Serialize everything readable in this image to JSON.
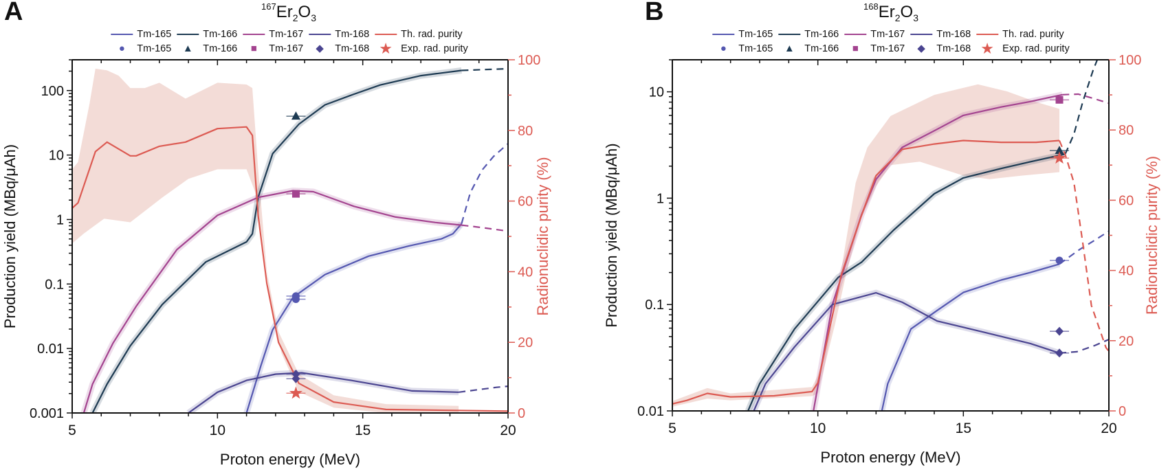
{
  "colors": {
    "tm165": "#5457b0",
    "tm166": "#1d3a52",
    "tm167": "#a3438f",
    "tm168": "#4a4490",
    "purity": "#dc5a52",
    "purity_band": "#f3dcd7"
  },
  "legend": {
    "lines": [
      "Tm-165",
      "Tm-166",
      "Tm-167",
      "Tm-168",
      "Th. rad. purity"
    ],
    "markers": [
      "Tm-165",
      "Tm-166",
      "Tm-167",
      "Tm-168",
      "Exp. rad. purity"
    ],
    "line_keys": [
      "tm165",
      "tm166",
      "tm167",
      "tm168",
      "purity"
    ],
    "marker_symbols": [
      "●",
      "▲",
      "■",
      "◆",
      "★"
    ]
  },
  "chart_data": [
    {
      "panel": "A",
      "type": "line",
      "title": {
        "mass": "167",
        "el1": "Er",
        "n1": "2",
        "el2": "O",
        "n2": "3"
      },
      "xlabel": "Proton energy (MeV)",
      "ylabel": "Production yield (MBq/μAh)",
      "y2label": "Radionuclidic purity (%)",
      "xlim": [
        5,
        20
      ],
      "ylim": [
        0.001,
        300
      ],
      "yscale": "log",
      "y2lim": [
        0,
        100
      ],
      "xticks": [
        "5",
        "10",
        "15",
        "20"
      ],
      "yticks": [
        "0.001",
        "0.01",
        "0.1",
        "1",
        "10",
        "100"
      ],
      "y2ticks": [
        "0",
        "20",
        "40",
        "60",
        "80",
        "100"
      ],
      "series": [
        {
          "name": "Tm-165",
          "key": "tm165",
          "marker": "circle",
          "solid": [
            [
              11.0,
              0.001
            ],
            [
              11.5,
              0.0055
            ],
            [
              11.9,
              0.0195
            ],
            [
              12.6,
              0.062
            ],
            [
              13.7,
              0.14
            ],
            [
              15.2,
              0.27
            ],
            [
              16.6,
              0.39
            ],
            [
              17.7,
              0.5
            ],
            [
              18.1,
              0.6
            ],
            [
              18.4,
              0.86
            ]
          ],
          "dashed": [
            [
              18.4,
              0.86
            ],
            [
              18.7,
              2.6
            ],
            [
              19.1,
              5.8
            ],
            [
              19.5,
              9.5
            ],
            [
              20,
              15
            ]
          ],
          "points": [
            [
              12.7,
              0.065
            ],
            [
              12.7,
              0.058
            ]
          ]
        },
        {
          "name": "Tm-166",
          "key": "tm166",
          "marker": "triangle",
          "solid": [
            [
              5.7,
              0.001
            ],
            [
              6.2,
              0.0028
            ],
            [
              7.0,
              0.011
            ],
            [
              8.1,
              0.048
            ],
            [
              9.6,
              0.22
            ],
            [
              11.0,
              0.45
            ],
            [
              11.2,
              0.6
            ],
            [
              11.4,
              2.2
            ],
            [
              11.9,
              10.5
            ],
            [
              12.8,
              30
            ],
            [
              13.7,
              60
            ],
            [
              14.7,
              88
            ],
            [
              15.6,
              122
            ],
            [
              17.0,
              170
            ],
            [
              18.4,
              205
            ]
          ],
          "dashed": [
            [
              18.4,
              205
            ],
            [
              19.2,
              212
            ],
            [
              20,
              218
            ]
          ],
          "points": [
            [
              12.7,
              40
            ]
          ]
        },
        {
          "name": "Tm-167",
          "key": "tm167",
          "marker": "square",
          "solid": [
            [
              5.4,
              0.001
            ],
            [
              5.7,
              0.0028
            ],
            [
              6.4,
              0.012
            ],
            [
              7.2,
              0.045
            ],
            [
              8.6,
              0.34
            ],
            [
              10.0,
              1.16
            ],
            [
              11.4,
              2.2
            ],
            [
              12.6,
              2.8
            ],
            [
              13.3,
              2.7
            ],
            [
              14.7,
              1.6
            ],
            [
              16.1,
              1.1
            ],
            [
              17.5,
              0.9
            ],
            [
              18.4,
              0.82
            ]
          ],
          "dashed": [
            [
              18.4,
              0.82
            ],
            [
              19.1,
              0.75
            ],
            [
              20,
              0.66
            ]
          ],
          "points": [
            [
              12.7,
              2.5
            ]
          ]
        },
        {
          "name": "Tm-168",
          "key": "tm168",
          "marker": "diamond",
          "solid": [
            [
              9.0,
              0.001
            ],
            [
              10.0,
              0.0021
            ],
            [
              11.0,
              0.0032
            ],
            [
              12.0,
              0.004
            ],
            [
              12.9,
              0.0042
            ],
            [
              14.6,
              0.0032
            ],
            [
              16.7,
              0.0022
            ],
            [
              18.3,
              0.0021
            ]
          ],
          "dashed": [
            [
              18.3,
              0.0021
            ],
            [
              19.6,
              0.0025
            ],
            [
              20,
              0.0026
            ]
          ],
          "points": [
            [
              12.7,
              0.004
            ],
            [
              12.7,
              0.0034
            ]
          ]
        }
      ],
      "purity": {
        "name": "Th. rad. purity",
        "solid": [
          [
            5.0,
            58
          ],
          [
            5.2,
            59.5
          ],
          [
            5.8,
            74
          ],
          [
            6.2,
            76.7
          ],
          [
            7.0,
            72.8
          ],
          [
            7.2,
            72.8
          ],
          [
            8.0,
            75.5
          ],
          [
            8.9,
            76.7
          ],
          [
            10.0,
            80.5
          ],
          [
            11.0,
            81
          ],
          [
            11.2,
            78.6
          ],
          [
            11.4,
            56
          ],
          [
            11.7,
            36.6
          ],
          [
            12.1,
            20
          ],
          [
            12.8,
            8.4
          ],
          [
            14.0,
            3.1
          ],
          [
            15.8,
            1
          ],
          [
            20,
            0.5
          ]
        ],
        "band_upper": [
          [
            5.0,
            69
          ],
          [
            5.2,
            71
          ],
          [
            5.6,
            87.7
          ],
          [
            5.8,
            97.5
          ],
          [
            6.2,
            97
          ],
          [
            6.6,
            95.5
          ],
          [
            7.0,
            92
          ],
          [
            7.5,
            92
          ],
          [
            8.0,
            93.5
          ],
          [
            8.9,
            89
          ],
          [
            10.0,
            93.5
          ],
          [
            11.0,
            93
          ],
          [
            11.2,
            92
          ],
          [
            11.4,
            69
          ],
          [
            11.7,
            40
          ],
          [
            12.1,
            23
          ],
          [
            12.8,
            11
          ],
          [
            14,
            5
          ],
          [
            15.8,
            2.5
          ],
          [
            18.3,
            2
          ]
        ],
        "band_lower": [
          [
            5.0,
            48
          ],
          [
            5.4,
            50.8
          ],
          [
            6.1,
            55
          ],
          [
            7.0,
            54
          ],
          [
            8.1,
            61
          ],
          [
            9.0,
            66.3
          ],
          [
            10.0,
            69
          ],
          [
            11.0,
            69
          ],
          [
            11.3,
            62.5
          ],
          [
            11.5,
            52
          ],
          [
            11.8,
            33
          ],
          [
            12.2,
            17
          ],
          [
            12.8,
            6
          ],
          [
            14,
            1.5
          ],
          [
            15.8,
            0
          ],
          [
            18.3,
            0
          ]
        ],
        "exp_points": [
          [
            12.7,
            5.6
          ]
        ]
      }
    },
    {
      "panel": "B",
      "type": "line",
      "title": {
        "mass": "168",
        "el1": "Er",
        "n1": "2",
        "el2": "O",
        "n2": "3"
      },
      "xlabel": "Proton energy (MeV)",
      "ylabel": "Production yield (MBq/μAh)",
      "y2label": "Radionuclidic purity (%)",
      "xlim": [
        5,
        20
      ],
      "ylim": [
        0.01,
        20
      ],
      "yscale": "log",
      "y2lim": [
        0,
        100
      ],
      "xticks": [
        "5",
        "10",
        "15",
        "20"
      ],
      "yticks": [
        "0.01",
        "0.1",
        "1",
        "10"
      ],
      "y2ticks": [
        "0",
        "20",
        "40",
        "60",
        "80",
        "100"
      ],
      "series": [
        {
          "name": "Tm-165",
          "key": "tm165",
          "marker": "circle",
          "solid": [
            [
              12.2,
              0.01
            ],
            [
              12.4,
              0.018
            ],
            [
              13.2,
              0.059
            ],
            [
              14.1,
              0.088
            ],
            [
              15.0,
              0.13
            ],
            [
              16.3,
              0.17
            ],
            [
              17.3,
              0.2
            ],
            [
              18.3,
              0.24
            ]
          ],
          "dashed": [
            [
              18.3,
              0.24
            ],
            [
              19.0,
              0.33
            ],
            [
              19.5,
              0.4
            ],
            [
              20,
              0.49
            ]
          ],
          "points": [
            [
              18.3,
              0.26
            ]
          ]
        },
        {
          "name": "Tm-166",
          "key": "tm166",
          "marker": "triangle",
          "solid": [
            [
              7.6,
              0.01
            ],
            [
              8.0,
              0.018
            ],
            [
              9.2,
              0.059
            ],
            [
              10.7,
              0.18
            ],
            [
              11.5,
              0.25
            ],
            [
              12.6,
              0.5
            ],
            [
              14.0,
              1.1
            ],
            [
              15.0,
              1.55
            ],
            [
              16.3,
              1.9
            ],
            [
              17.3,
              2.2
            ],
            [
              18.5,
              2.6
            ]
          ],
          "dashed": [
            [
              18.5,
              2.6
            ],
            [
              18.8,
              4
            ],
            [
              19.1,
              8
            ],
            [
              19.46,
              16
            ],
            [
              19.6,
              20
            ]
          ],
          "points": [
            [
              18.3,
              2.8
            ]
          ]
        },
        {
          "name": "Tm-167",
          "key": "tm167",
          "marker": "square",
          "solid": [
            [
              9.85,
              0.01
            ],
            [
              10.5,
              0.1
            ],
            [
              10.8,
              0.18
            ],
            [
              11.5,
              0.7
            ],
            [
              12.0,
              1.5
            ],
            [
              12.9,
              3.0
            ],
            [
              14.0,
              4.3
            ],
            [
              15.0,
              6.0
            ],
            [
              16.3,
              7.2
            ],
            [
              17.3,
              8.1
            ],
            [
              18.4,
              9.4
            ]
          ],
          "dashed": [
            [
              18.4,
              9.4
            ],
            [
              18.95,
              9.5
            ],
            [
              19.5,
              8.6
            ],
            [
              20,
              7.8
            ]
          ],
          "points": [
            [
              18.3,
              8.4
            ]
          ]
        },
        {
          "name": "Tm-168",
          "key": "tm168",
          "marker": "diamond",
          "solid": [
            [
              7.8,
              0.01
            ],
            [
              8.2,
              0.018
            ],
            [
              9.2,
              0.04
            ],
            [
              10.5,
              0.1
            ],
            [
              12.0,
              0.129
            ],
            [
              12.9,
              0.105
            ],
            [
              14.1,
              0.07
            ],
            [
              15.7,
              0.055
            ],
            [
              17.3,
              0.043
            ],
            [
              18.3,
              0.035
            ]
          ],
          "dashed": [
            [
              18.3,
              0.035
            ],
            [
              18.9,
              0.036
            ],
            [
              19.5,
              0.041
            ],
            [
              20,
              0.047
            ]
          ],
          "points": [
            [
              18.3,
              0.056
            ],
            [
              18.3,
              0.035
            ]
          ]
        }
      ],
      "purity": {
        "name": "Th. rad. purity",
        "solid": [
          [
            5.0,
            2
          ],
          [
            5.5,
            3
          ],
          [
            6.2,
            5
          ],
          [
            7.0,
            4
          ],
          [
            8.5,
            4.3
          ],
          [
            9.8,
            5.5
          ],
          [
            10.0,
            8
          ],
          [
            10.8,
            38.6
          ],
          [
            11.5,
            55.7
          ],
          [
            12.0,
            67
          ],
          [
            12.9,
            74.5
          ],
          [
            14.0,
            76
          ],
          [
            15.0,
            77
          ],
          [
            16.3,
            76.5
          ],
          [
            17.5,
            76.5
          ],
          [
            18.3,
            77
          ]
        ],
        "dashed": [
          [
            18.3,
            77
          ],
          [
            18.5,
            73
          ],
          [
            18.8,
            65
          ],
          [
            19.1,
            48
          ],
          [
            19.4,
            30
          ],
          [
            19.9,
            18
          ],
          [
            20,
            17
          ]
        ],
        "band_upper": [
          [
            5.0,
            2.8
          ],
          [
            6.2,
            6.5
          ],
          [
            7.0,
            5
          ],
          [
            9.8,
            6.8
          ],
          [
            10.0,
            10
          ],
          [
            10.5,
            25
          ],
          [
            11.0,
            50
          ],
          [
            11.3,
            65
          ],
          [
            11.7,
            75
          ],
          [
            12.5,
            84
          ],
          [
            14,
            90
          ],
          [
            15.5,
            93
          ],
          [
            16.5,
            91
          ],
          [
            17.5,
            88
          ],
          [
            18.3,
            86
          ]
        ],
        "band_lower": [
          [
            5.0,
            1.2
          ],
          [
            6.2,
            3.5
          ],
          [
            7.0,
            3
          ],
          [
            9.8,
            4.2
          ],
          [
            10.0,
            5
          ],
          [
            10.6,
            25
          ],
          [
            11.0,
            40
          ],
          [
            11.5,
            55
          ],
          [
            12.0,
            64
          ],
          [
            12.5,
            70
          ],
          [
            13.5,
            71
          ],
          [
            15.0,
            67
          ],
          [
            15.9,
            66
          ],
          [
            17.0,
            67
          ],
          [
            18.3,
            68
          ]
        ],
        "exp_points": [
          [
            18.3,
            72
          ]
        ]
      }
    }
  ]
}
